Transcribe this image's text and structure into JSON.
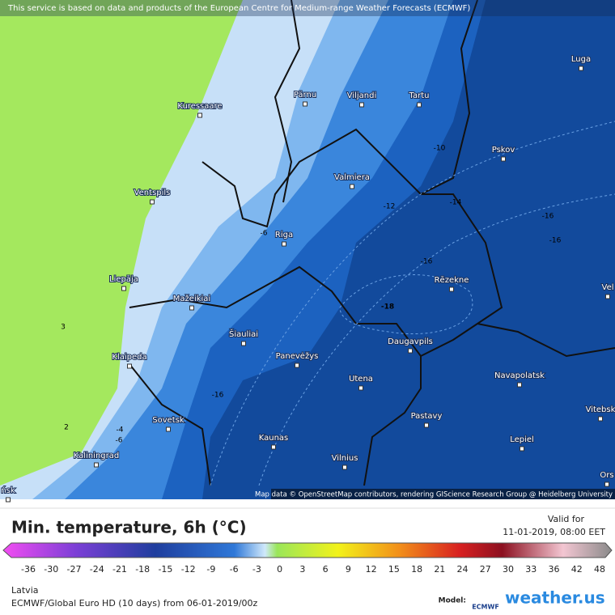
{
  "header": {
    "attribution": "This service is based on data and products of the European Centre for Medium-range Weather Forecasts (ECMWF)"
  },
  "map": {
    "cities": [
      "Luga",
      "Pärnu",
      "Viljandi",
      "Tartu",
      "Kuressaare",
      "Pskov",
      "Valmiera",
      "Ventspils",
      "Riga",
      "Liepāja",
      "Rēzekne",
      "Mažeikiai",
      "Šiauliai",
      "Klaipeda",
      "Panevėžys",
      "Daugavpils",
      "Utena",
      "Navapolatsk",
      "Sovetsk",
      "Pastavy",
      "Kaunas",
      "Lepiel",
      "Kaliningrad",
      "Vilnius",
      "Vitebsk",
      "Vel",
      "Ors",
      "ńsk"
    ],
    "contour_labels": [
      -10,
      -12,
      -14,
      -16,
      -16,
      -16,
      -6,
      -18,
      -16,
      3,
      2,
      -4,
      -6
    ],
    "credits": "Map data © OpenStreetMap contributors, rendering GIScience Research Group @ Heidelberg University"
  },
  "footer": {
    "title": "Min. temperature, 6h (°C)",
    "valid_label": "Valid for",
    "valid_time": "11-01-2019, 08:00 EET",
    "scale_ticks": [
      -36,
      -30,
      -27,
      -24,
      -21,
      -18,
      -15,
      -12,
      -9,
      -6,
      -3,
      0,
      3,
      6,
      9,
      12,
      15,
      18,
      21,
      24,
      27,
      30,
      33,
      36,
      42,
      48
    ],
    "region": "Latvia",
    "model_run": "ECMWF/Global Euro HD (10 days) from 06-01-2019/00z",
    "model_label": "Model:",
    "model_logo": "ECMWF",
    "brand": "weather.us"
  }
}
